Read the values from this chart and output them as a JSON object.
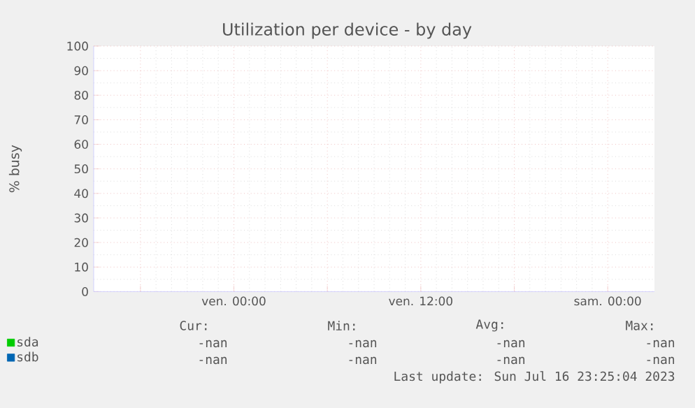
{
  "chart_data": {
    "type": "line",
    "title": "Utilization per device - by day",
    "ylabel": "% busy",
    "categories": [
      null,
      "ven. 00:00",
      null,
      "ven. 12:00",
      null,
      "sam. 00:00"
    ],
    "series": [
      {
        "name": "sda",
        "color": "#00cc00",
        "values": [
          null,
          null,
          null,
          null,
          null,
          null
        ]
      },
      {
        "name": "sdb",
        "color": "#0066b3",
        "values": [
          null,
          null,
          null,
          null,
          null,
          null
        ]
      }
    ],
    "ylim": [
      0,
      100
    ],
    "yticks": [
      0,
      10,
      20,
      30,
      40,
      50,
      60,
      70,
      80,
      90,
      100
    ],
    "grid": true,
    "legend": "bottom left",
    "annotations": [
      "Cur:",
      "Min:",
      "Avg:",
      "Max:",
      "-nan",
      "-nan",
      "-nan",
      "-nan",
      "-nan",
      "-nan",
      "-nan",
      "-nan",
      "Last update:  Sun Jul 16 23:25:04 2023"
    ]
  }
}
